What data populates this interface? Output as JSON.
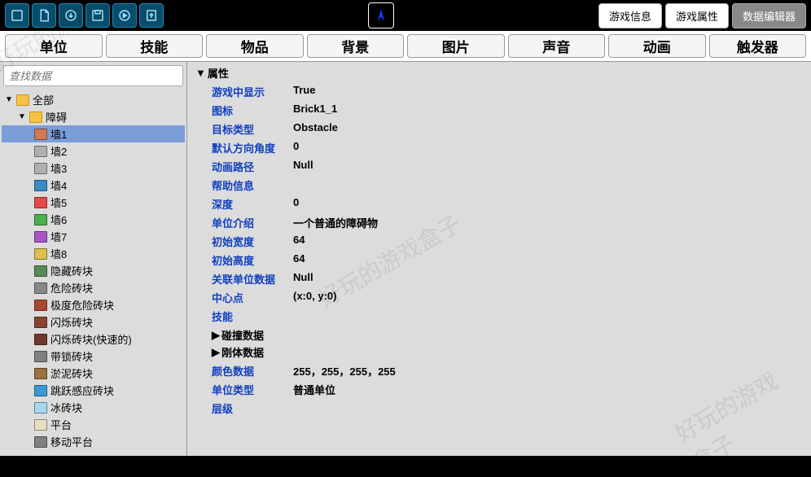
{
  "toolbar": {
    "buttons": {
      "info": "游戏信息",
      "attr": "游戏属性",
      "data": "数据编辑器"
    }
  },
  "tabs": [
    "单位",
    "技能",
    "物品",
    "背景",
    "图片",
    "声音",
    "动画",
    "触发器"
  ],
  "search": {
    "placeholder": "查找数据"
  },
  "tree": {
    "root": {
      "label": "全部"
    },
    "group": {
      "label": "障碍"
    },
    "items": [
      {
        "label": "墙1",
        "color": "#d47850",
        "selected": true
      },
      {
        "label": "墙2",
        "color": "#b0b0b0"
      },
      {
        "label": "墙3",
        "color": "#b0b0b0"
      },
      {
        "label": "墙4",
        "color": "#3d89c4"
      },
      {
        "label": "墙5",
        "color": "#e84848"
      },
      {
        "label": "墙6",
        "color": "#4baf4b"
      },
      {
        "label": "墙7",
        "color": "#a955c4"
      },
      {
        "label": "墙8",
        "color": "#dcc04a"
      },
      {
        "label": "隐藏砖块",
        "color": "#5a8a5a"
      },
      {
        "label": "危险砖块",
        "color": "#888888"
      },
      {
        "label": "极度危险砖块",
        "color": "#a84a30"
      },
      {
        "label": "闪烁砖块",
        "color": "#884430"
      },
      {
        "label": "闪烁砖块(快速的)",
        "color": "#703828"
      },
      {
        "label": "带锁砖块",
        "color": "#808080"
      },
      {
        "label": "淤泥砖块",
        "color": "#9a7040"
      },
      {
        "label": "跳跃感应砖块",
        "color": "#3a9ad8"
      },
      {
        "label": "冰砖块",
        "color": "#a8d8f0"
      },
      {
        "label": "平台",
        "color": "#e8e0c0"
      },
      {
        "label": "移动平台",
        "color": "#808080"
      }
    ]
  },
  "props": {
    "header": "属性",
    "rows": [
      {
        "label": "游戏中显示",
        "value": "True"
      },
      {
        "label": "图标",
        "value": "Brick1_1"
      },
      {
        "label": "目标类型",
        "value": "Obstacle"
      },
      {
        "label": "默认方向角度",
        "value": "0"
      },
      {
        "label": "动画路径",
        "value": "Null"
      },
      {
        "label": "帮助信息",
        "value": ""
      },
      {
        "label": "深度",
        "value": "0"
      },
      {
        "label": "单位介绍",
        "value": "一个普通的障碍物"
      },
      {
        "label": "初始宽度",
        "value": "64"
      },
      {
        "label": "初始高度",
        "value": "64"
      },
      {
        "label": "关联单位数据",
        "value": "Null"
      },
      {
        "label": "中心点",
        "value": "(x:0, y:0)"
      },
      {
        "label": "技能",
        "value": ""
      }
    ],
    "sub1": "碰撞数据",
    "sub2": "刚体数据",
    "rows2": [
      {
        "label": "颜色数据",
        "value": "255，255，255，255"
      },
      {
        "label": "单位类型",
        "value": "普通单位"
      },
      {
        "label": "层级",
        "value": ""
      }
    ]
  },
  "watermark": "好玩的游戏盒子"
}
